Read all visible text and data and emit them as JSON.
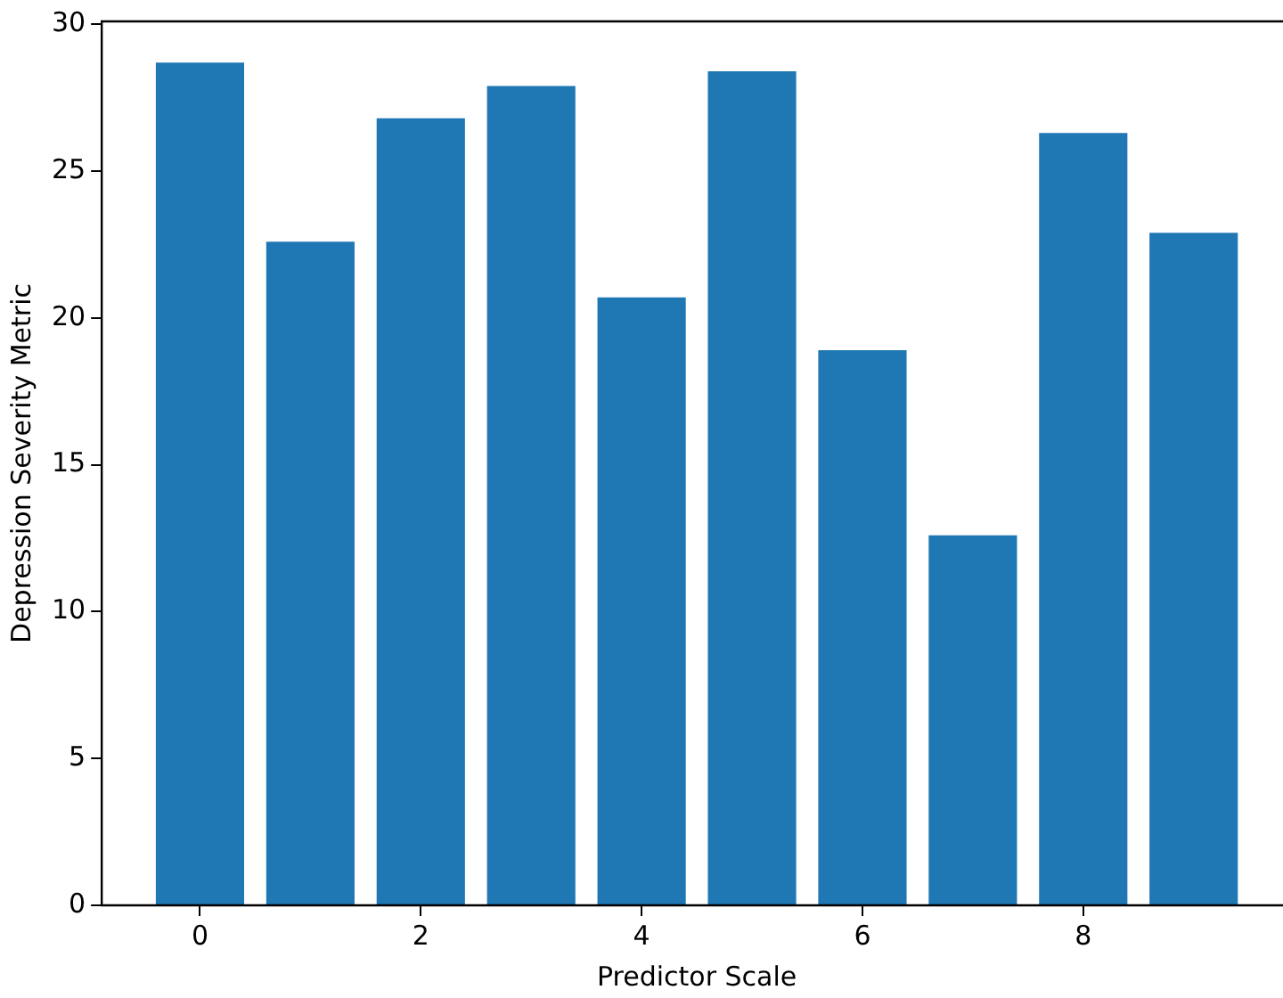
{
  "chart_data": {
    "type": "bar",
    "xlabel": "Predictor Scale",
    "ylabel": "Depression Severity Metric",
    "x": [
      0,
      1,
      2,
      3,
      4,
      5,
      6,
      7,
      8,
      9
    ],
    "values": [
      28.7,
      22.6,
      26.8,
      27.9,
      20.7,
      28.4,
      18.9,
      12.6,
      26.3,
      22.9
    ],
    "color": "#1f77b4",
    "xlim": [
      -0.89,
      9.89
    ],
    "xticks": [
      0,
      2,
      4,
      6,
      8
    ],
    "ylim": [
      0,
      30.1
    ],
    "yticks": [
      0,
      5,
      10,
      15,
      20,
      25,
      30
    ],
    "grid": false,
    "legend": false
  }
}
